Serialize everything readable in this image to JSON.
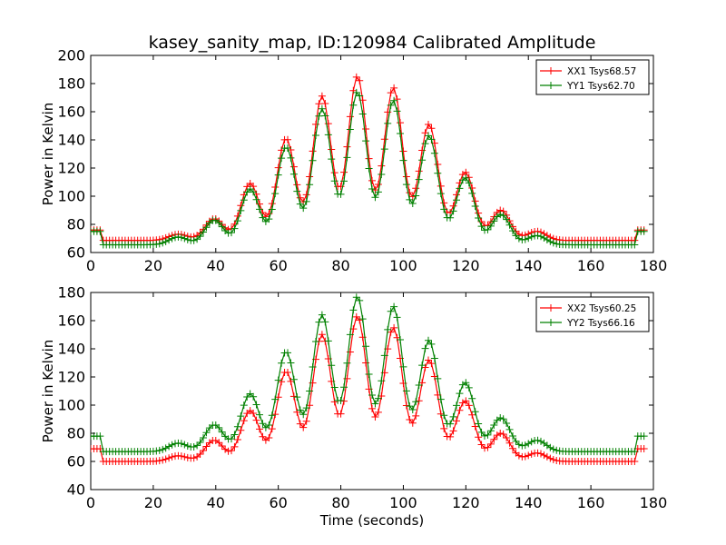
{
  "chart_data": [
    {
      "type": "line",
      "title": "kasey_sanity_map, ID:120984 Calibrated Amplitude",
      "xlabel": "",
      "ylabel": "Power in Kelvin",
      "xlim": [
        0,
        180
      ],
      "ylim": [
        60,
        200
      ],
      "xticks": [
        "0",
        "20",
        "40",
        "60",
        "80",
        "100",
        "120",
        "140",
        "160",
        "180"
      ],
      "yticks": [
        "60",
        "80",
        "100",
        "120",
        "140",
        "160",
        "180",
        "200"
      ],
      "grid": false,
      "legend": "top-right",
      "series": [
        {
          "name": "XX1 Tsys68.57",
          "color": "#ff0000",
          "end_level": 76,
          "baseline": 68.6,
          "peaks": [
            [
              28,
              73
            ],
            [
              39.5,
              84
            ],
            [
              51,
              109
            ],
            [
              62.5,
              141
            ],
            [
              74,
              171
            ],
            [
              85.3,
              185
            ],
            [
              96.8,
              177
            ],
            [
              108.2,
              151
            ],
            [
              119.8,
              117
            ],
            [
              131.2,
              90
            ],
            [
              142.7,
              75
            ]
          ]
        },
        {
          "name": "YY1 Tsys62.70",
          "color": "#008000",
          "end_level": 75,
          "baseline": 65.5,
          "peaks": [
            [
              28,
              71
            ],
            [
              39.5,
              83
            ],
            [
              51,
              105
            ],
            [
              62.5,
              135
            ],
            [
              74,
              162
            ],
            [
              85.3,
              174
            ],
            [
              96.8,
              168
            ],
            [
              108.2,
              143
            ],
            [
              119.8,
              113
            ],
            [
              131.2,
              87
            ],
            [
              142.7,
              72
            ]
          ]
        }
      ]
    },
    {
      "type": "line",
      "title": "",
      "xlabel": "Time (seconds)",
      "ylabel": "Power in Kelvin",
      "xlim": [
        0,
        180
      ],
      "ylim": [
        40,
        180
      ],
      "xticks": [
        "0",
        "20",
        "40",
        "60",
        "80",
        "100",
        "120",
        "140",
        "160",
        "180"
      ],
      "yticks": [
        "40",
        "60",
        "80",
        "100",
        "120",
        "140",
        "160",
        "180"
      ],
      "grid": false,
      "legend": "top-right",
      "series": [
        {
          "name": "XX2 Tsys60.25",
          "color": "#ff0000",
          "end_level": 69,
          "baseline": 60,
          "peaks": [
            [
              28,
              64
            ],
            [
              39.5,
              75
            ],
            [
              51,
              96
            ],
            [
              62.5,
              124
            ],
            [
              74,
              150
            ],
            [
              85.3,
              163
            ],
            [
              96.8,
              155
            ],
            [
              108.2,
              132
            ],
            [
              119.8,
              103
            ],
            [
              131.2,
              80
            ],
            [
              142.7,
              66
            ]
          ]
        },
        {
          "name": "YY2 Tsys66.16",
          "color": "#008000",
          "end_level": 78,
          "baseline": 67,
          "peaks": [
            [
              28,
              73
            ],
            [
              39.5,
              86
            ],
            [
              51,
              108
            ],
            [
              62.5,
              138
            ],
            [
              74,
              164
            ],
            [
              85.3,
              177
            ],
            [
              96.8,
              170
            ],
            [
              108.2,
              146
            ],
            [
              119.8,
              116
            ],
            [
              131.2,
              91
            ],
            [
              142.7,
              75
            ]
          ]
        }
      ]
    }
  ]
}
